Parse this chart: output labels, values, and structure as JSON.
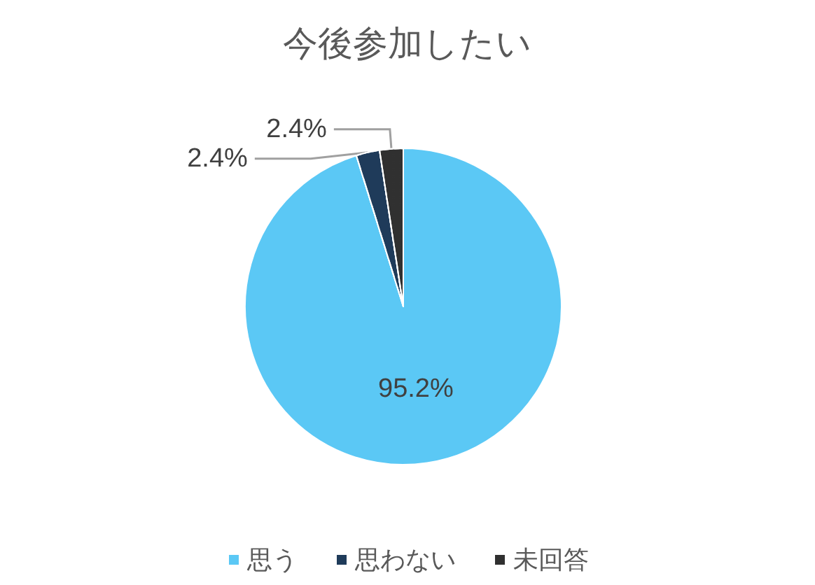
{
  "chart_data": {
    "type": "pie",
    "title": "今後参加したい",
    "categories": [
      "思う",
      "思わない",
      "未回答"
    ],
    "values": [
      95.2,
      2.4,
      2.4
    ],
    "value_labels": [
      "95.2%",
      "2.4%",
      "2.4%"
    ],
    "colors": [
      "#5bc8f5",
      "#1f3b5a",
      "#303030"
    ],
    "legend": "bottom"
  }
}
